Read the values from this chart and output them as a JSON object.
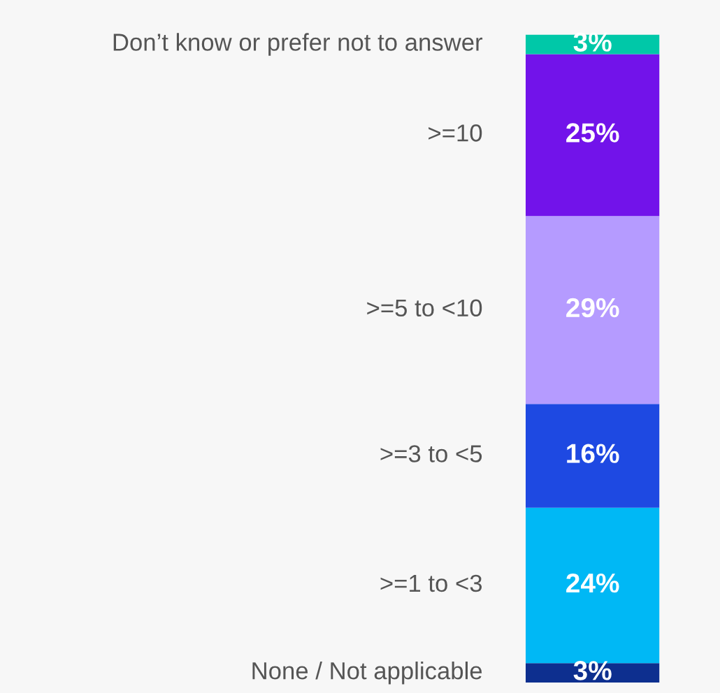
{
  "chart_data": {
    "type": "bar",
    "stacked": true,
    "categories": [
      null
    ],
    "series": [
      {
        "name": "None / Not applicable",
        "color": "#0d2f8f",
        "values": [
          3
        ],
        "value_labels": [
          "3%"
        ]
      },
      {
        "name": ">=1 to <3",
        "color": "#00b8f5",
        "values": [
          24
        ],
        "value_labels": [
          "24%"
        ]
      },
      {
        "name": ">=3 to <5",
        "color": "#1e49e2",
        "values": [
          16
        ],
        "value_labels": [
          "16%"
        ]
      },
      {
        "name": ">=5 to <10",
        "color": "#b59bff",
        "values": [
          29
        ],
        "value_labels": [
          "29%"
        ]
      },
      {
        "name": ">=10",
        "color": "#7213ea",
        "values": [
          25
        ],
        "value_labels": [
          "25%"
        ]
      },
      {
        "name": "Don’t know or prefer not to answer",
        "color": "#00c8a8",
        "values": [
          3
        ],
        "value_labels": [
          "3%"
        ]
      }
    ]
  }
}
